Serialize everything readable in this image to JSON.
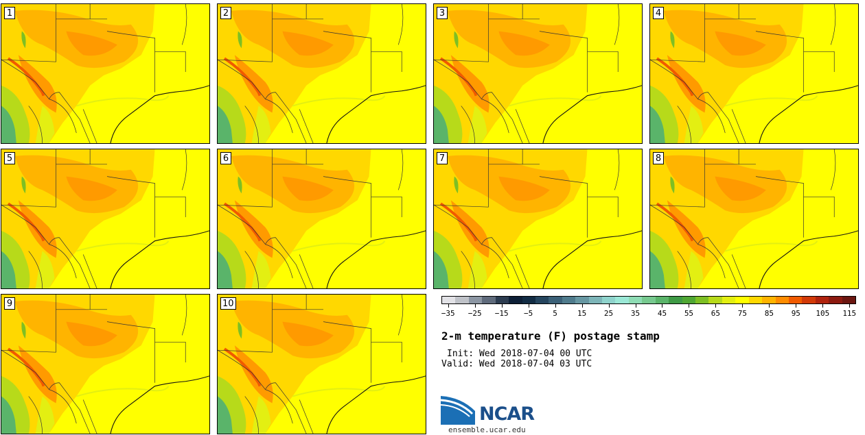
{
  "figure": {
    "title": "2-m temperature (F) postage stamp",
    "init_text": "Init: Wed 2018-07-04 00 UTC",
    "valid_text": "Valid: Wed 2018-07-04 03 UTC",
    "logo_text": "NCAR",
    "url": "ensemble.ucar.edu"
  },
  "members": [
    "1",
    "2",
    "3",
    "4",
    "5",
    "6",
    "7",
    "8",
    "9",
    "10"
  ],
  "colorbar": {
    "tick_labels": [
      "−35",
      "−25",
      "−15",
      "−5",
      "5",
      "15",
      "25",
      "35",
      "45",
      "55",
      "65",
      "75",
      "85",
      "95",
      "105",
      "115"
    ],
    "colors": [
      "#e2e2e6",
      "#bfc2c8",
      "#8c96a3",
      "#5f6b7c",
      "#2c3c50",
      "#0d1f36",
      "#122c44",
      "#25455e",
      "#3b6077",
      "#4f7b8c",
      "#6797a2",
      "#7db5b8",
      "#8fd3cc",
      "#9be8d6",
      "#8edcb4",
      "#77c98f",
      "#5ab46a",
      "#3e9a45",
      "#4fa733",
      "#7dbf24",
      "#b7da1a",
      "#e3ef12",
      "#ffff00",
      "#ffd800",
      "#ffb400",
      "#ff8c00",
      "#f05a00",
      "#d23a08",
      "#b0230e",
      "#8c1a10",
      "#6b1610"
    ]
  }
}
